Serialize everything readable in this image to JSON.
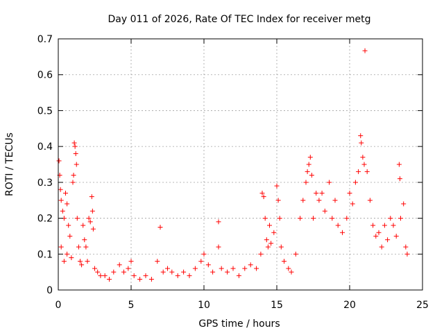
{
  "chart_data": {
    "type": "scatter",
    "title": "Day 011 of 2026, Rate Of TEC Index for receiver metg",
    "xlabel": "GPS time / hours",
    "ylabel": "ROTI / TECUs",
    "xlim": [
      0,
      25
    ],
    "ylim": [
      0,
      0.7
    ],
    "x_ticks": [
      0,
      5,
      10,
      15,
      20,
      25
    ],
    "x_tick_labels": [
      "0",
      "5",
      "10",
      "15",
      "20",
      "25"
    ],
    "y_ticks": [
      0,
      0.1,
      0.2,
      0.3,
      0.4,
      0.5,
      0.6,
      0.7
    ],
    "y_tick_labels": [
      "0",
      "0.1",
      "0.2",
      "0.3",
      "0.4",
      "0.5",
      "0.6",
      "0.7"
    ],
    "grid": true,
    "legend": "none",
    "marker": "plus",
    "color": "#ff0000",
    "series": [
      {
        "points": [
          [
            0.05,
            0.36
          ],
          [
            0.1,
            0.32
          ],
          [
            0.15,
            0.28
          ],
          [
            0.2,
            0.25
          ],
          [
            0.3,
            0.22
          ],
          [
            0.4,
            0.2
          ],
          [
            0.5,
            0.27
          ],
          [
            0.6,
            0.24
          ],
          [
            0.7,
            0.18
          ],
          [
            0.8,
            0.15
          ],
          [
            0.2,
            0.12
          ],
          [
            0.4,
            0.08
          ],
          [
            0.6,
            0.1
          ],
          [
            0.9,
            0.09
          ],
          [
            1.0,
            0.3
          ],
          [
            1.05,
            0.32
          ],
          [
            1.1,
            0.41
          ],
          [
            1.15,
            0.4
          ],
          [
            1.2,
            0.38
          ],
          [
            1.25,
            0.35
          ],
          [
            1.3,
            0.2
          ],
          [
            1.4,
            0.12
          ],
          [
            1.5,
            0.08
          ],
          [
            1.6,
            0.07
          ],
          [
            1.7,
            0.18
          ],
          [
            1.8,
            0.14
          ],
          [
            1.9,
            0.12
          ],
          [
            2.0,
            0.08
          ],
          [
            2.1,
            0.2
          ],
          [
            2.2,
            0.19
          ],
          [
            2.3,
            0.26
          ],
          [
            2.35,
            0.22
          ],
          [
            2.4,
            0.17
          ],
          [
            2.5,
            0.06
          ],
          [
            2.7,
            0.05
          ],
          [
            2.9,
            0.04
          ],
          [
            3.2,
            0.04
          ],
          [
            3.5,
            0.03
          ],
          [
            3.8,
            0.05
          ],
          [
            4.2,
            0.07
          ],
          [
            4.5,
            0.05
          ],
          [
            4.8,
            0.06
          ],
          [
            5.0,
            0.08
          ],
          [
            5.2,
            0.04
          ],
          [
            5.6,
            0.03
          ],
          [
            6.0,
            0.04
          ],
          [
            6.4,
            0.03
          ],
          [
            6.8,
            0.08
          ],
          [
            7.0,
            0.175
          ],
          [
            7.2,
            0.05
          ],
          [
            7.5,
            0.06
          ],
          [
            7.8,
            0.05
          ],
          [
            8.2,
            0.04
          ],
          [
            8.6,
            0.05
          ],
          [
            9.0,
            0.04
          ],
          [
            9.4,
            0.06
          ],
          [
            9.8,
            0.08
          ],
          [
            10.0,
            0.1
          ],
          [
            10.3,
            0.07
          ],
          [
            10.6,
            0.05
          ],
          [
            11.0,
            0.19
          ],
          [
            11.0,
            0.12
          ],
          [
            11.2,
            0.06
          ],
          [
            11.6,
            0.05
          ],
          [
            12.0,
            0.06
          ],
          [
            12.4,
            0.04
          ],
          [
            12.8,
            0.06
          ],
          [
            13.2,
            0.07
          ],
          [
            13.6,
            0.06
          ],
          [
            13.9,
            0.1
          ],
          [
            14.0,
            0.27
          ],
          [
            14.1,
            0.26
          ],
          [
            14.2,
            0.2
          ],
          [
            14.3,
            0.14
          ],
          [
            14.4,
            0.12
          ],
          [
            14.5,
            0.18
          ],
          [
            14.6,
            0.13
          ],
          [
            14.8,
            0.16
          ],
          [
            15.0,
            0.29
          ],
          [
            15.1,
            0.25
          ],
          [
            15.2,
            0.2
          ],
          [
            15.3,
            0.12
          ],
          [
            15.5,
            0.08
          ],
          [
            15.8,
            0.06
          ],
          [
            16.0,
            0.05
          ],
          [
            16.3,
            0.1
          ],
          [
            16.6,
            0.2
          ],
          [
            16.8,
            0.25
          ],
          [
            17.0,
            0.3
          ],
          [
            17.1,
            0.33
          ],
          [
            17.2,
            0.35
          ],
          [
            17.3,
            0.37
          ],
          [
            17.4,
            0.32
          ],
          [
            17.5,
            0.2
          ],
          [
            17.7,
            0.27
          ],
          [
            17.9,
            0.25
          ],
          [
            18.1,
            0.27
          ],
          [
            18.3,
            0.22
          ],
          [
            18.6,
            0.3
          ],
          [
            18.8,
            0.2
          ],
          [
            19.0,
            0.25
          ],
          [
            19.2,
            0.18
          ],
          [
            19.5,
            0.16
          ],
          [
            19.8,
            0.2
          ],
          [
            20.0,
            0.27
          ],
          [
            20.2,
            0.24
          ],
          [
            20.4,
            0.3
          ],
          [
            20.6,
            0.33
          ],
          [
            20.75,
            0.43
          ],
          [
            20.8,
            0.41
          ],
          [
            20.9,
            0.37
          ],
          [
            21.0,
            0.35
          ],
          [
            21.05,
            0.667
          ],
          [
            21.2,
            0.33
          ],
          [
            21.4,
            0.25
          ],
          [
            21.6,
            0.18
          ],
          [
            21.8,
            0.15
          ],
          [
            22.0,
            0.16
          ],
          [
            22.2,
            0.12
          ],
          [
            22.4,
            0.18
          ],
          [
            22.6,
            0.14
          ],
          [
            22.8,
            0.2
          ],
          [
            23.0,
            0.18
          ],
          [
            23.2,
            0.15
          ],
          [
            23.4,
            0.35
          ],
          [
            23.45,
            0.31
          ],
          [
            23.5,
            0.2
          ],
          [
            23.7,
            0.24
          ],
          [
            23.85,
            0.12
          ],
          [
            23.95,
            0.1
          ]
        ]
      }
    ]
  }
}
